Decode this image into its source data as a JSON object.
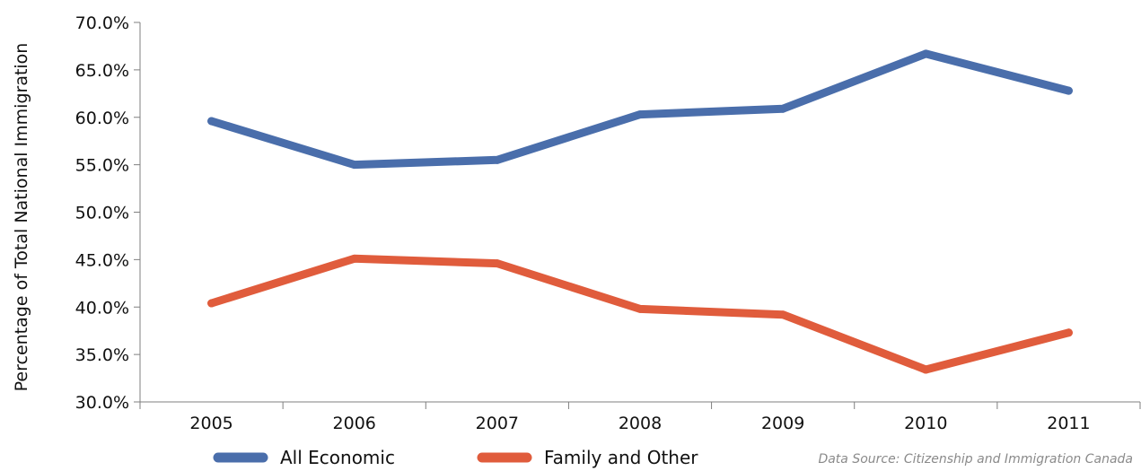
{
  "chart_data": {
    "type": "line",
    "title": "",
    "xlabel": "",
    "ylabel": "Percentage of Total National Immigration",
    "categories": [
      "2005",
      "2006",
      "2007",
      "2008",
      "2009",
      "2010",
      "2011"
    ],
    "ylim": [
      30.0,
      70.0
    ],
    "yticks": [
      30.0,
      35.0,
      40.0,
      45.0,
      50.0,
      55.0,
      60.0,
      65.0,
      70.0
    ],
    "y_tick_format": "0.0%",
    "grid": false,
    "legend_position": "bottom",
    "series": [
      {
        "name": "All Economic",
        "color": "#4a6eab",
        "values": [
          59.6,
          55.0,
          55.5,
          60.3,
          60.9,
          66.7,
          62.8
        ]
      },
      {
        "name": "Family and Other",
        "color": "#e05c3c",
        "values": [
          40.4,
          45.1,
          44.6,
          39.8,
          39.2,
          33.4,
          37.3
        ]
      }
    ],
    "annotation": "Data Source: Citizenship and Immigration Canada"
  }
}
